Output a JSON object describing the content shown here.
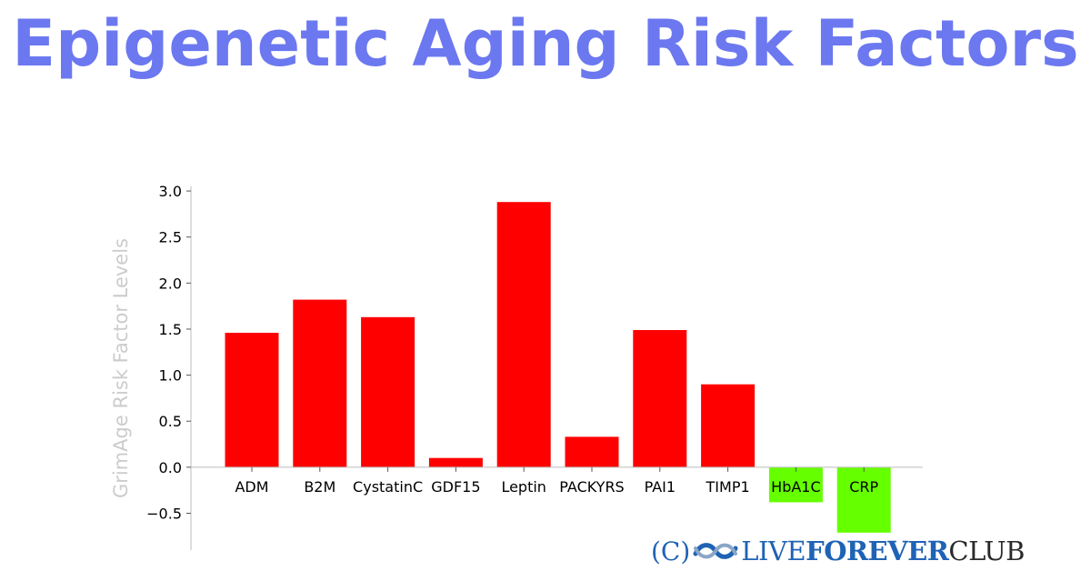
{
  "title": "Epigenetic Aging Risk Factors",
  "colors": {
    "title": "#6b78f0",
    "positive": "#ff0000",
    "negative": "#66ff00",
    "ylabel": "#cccccc"
  },
  "watermark": {
    "prefix": "(C)",
    "word1": "LIVE",
    "word2": "FOREVER",
    "word3": "CLUB",
    "logo_icon": "infinity-wave-icon"
  },
  "chart_data": {
    "type": "bar",
    "title": "",
    "xlabel": "",
    "ylabel": "GrimAge Risk Factor Levels",
    "categories": [
      "ADM",
      "B2M",
      "CystatinC",
      "GDF15",
      "Leptin",
      "PACKYRS",
      "PAI1",
      "TIMP1",
      "HbA1C",
      "CRP"
    ],
    "values": [
      1.46,
      1.82,
      1.63,
      0.1,
      2.88,
      0.33,
      1.49,
      0.9,
      -0.38,
      -0.71
    ],
    "ylim": [
      -0.9,
      3.05
    ],
    "yticks": [
      -0.5,
      0.0,
      0.5,
      1.0,
      1.5,
      2.0,
      2.5,
      3.0
    ],
    "ytick_labels": [
      "−0.5",
      "0.0",
      "0.5",
      "1.0",
      "1.5",
      "2.0",
      "2.5",
      "3.0"
    ],
    "grid": false,
    "legend": "none"
  }
}
